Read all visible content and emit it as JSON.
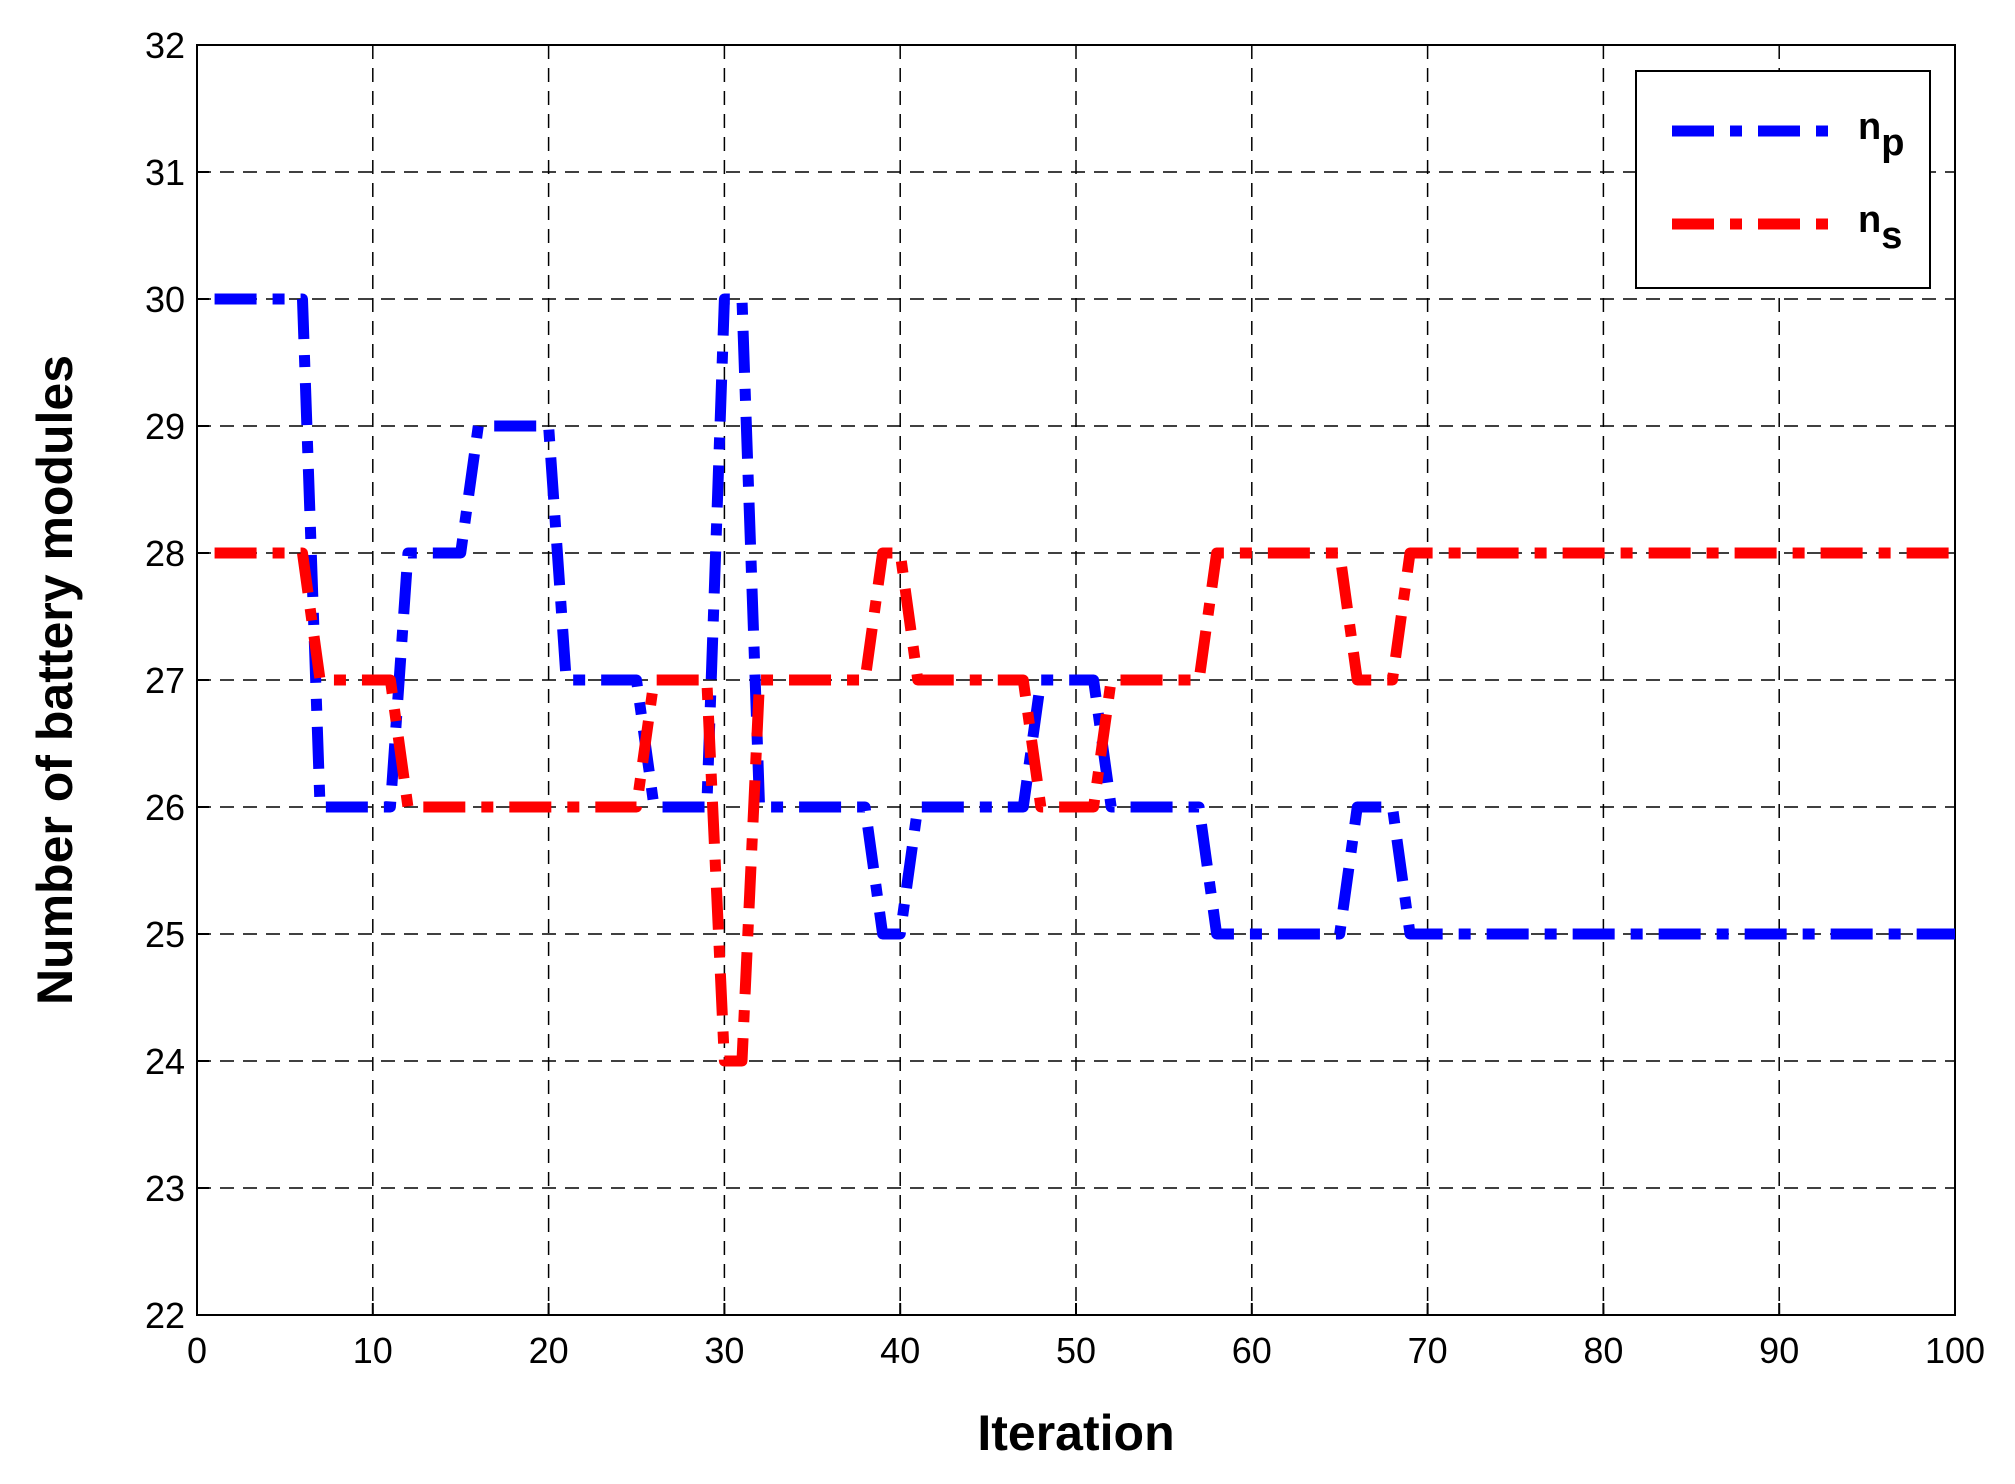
{
  "chart_data": {
    "type": "line",
    "x_label": "Iteration",
    "y_label": "Number of battery modules",
    "x": [
      1,
      2,
      3,
      4,
      5,
      6,
      7,
      8,
      9,
      10,
      11,
      12,
      13,
      14,
      15,
      16,
      17,
      18,
      19,
      20,
      21,
      22,
      23,
      24,
      25,
      26,
      27,
      28,
      29,
      30,
      31,
      32,
      33,
      34,
      35,
      36,
      37,
      38,
      39,
      40,
      41,
      42,
      43,
      44,
      45,
      46,
      47,
      48,
      49,
      50,
      51,
      52,
      53,
      54,
      55,
      56,
      57,
      58,
      59,
      60,
      61,
      62,
      63,
      64,
      65,
      66,
      67,
      68,
      69,
      70,
      71,
      72,
      73,
      74,
      75,
      76,
      77,
      78,
      79,
      80,
      81,
      82,
      83,
      84,
      85,
      86,
      87,
      88,
      89,
      90,
      91,
      92,
      93,
      94,
      95,
      96,
      97,
      98,
      99,
      100
    ],
    "series": [
      {
        "name": "np",
        "color": "#0000ff",
        "values": [
          30,
          30,
          30,
          30,
          30,
          30,
          26,
          26,
          26,
          26,
          26,
          28,
          28,
          28,
          28,
          29,
          29,
          29,
          29,
          29,
          27,
          27,
          27,
          27,
          27,
          26,
          26,
          26,
          26,
          30,
          30,
          26,
          26,
          26,
          26,
          26,
          26,
          26,
          25,
          25,
          26,
          26,
          26,
          26,
          26,
          26,
          26,
          27,
          27,
          27,
          27,
          26,
          26,
          26,
          26,
          26,
          26,
          25,
          25,
          25,
          25,
          25,
          25,
          25,
          25,
          26,
          26,
          26,
          25,
          25,
          25,
          25,
          25,
          25,
          25,
          25,
          25,
          25,
          25,
          25,
          25,
          25,
          25,
          25,
          25,
          25,
          25,
          25,
          25,
          25,
          25,
          25,
          25,
          25,
          25,
          25,
          25,
          25,
          25,
          25
        ]
      },
      {
        "name": "ns",
        "color": "#ff0000",
        "values": [
          28,
          28,
          28,
          28,
          28,
          28,
          27,
          27,
          27,
          27,
          27,
          26,
          26,
          26,
          26,
          26,
          26,
          26,
          26,
          26,
          26,
          26,
          26,
          26,
          26,
          27,
          27,
          27,
          27,
          24,
          24,
          27,
          27,
          27,
          27,
          27,
          27,
          27,
          28,
          28,
          27,
          27,
          27,
          27,
          27,
          27,
          27,
          26,
          26,
          26,
          26,
          27,
          27,
          27,
          27,
          27,
          27,
          28,
          28,
          28,
          28,
          28,
          28,
          28,
          28,
          27,
          27,
          27,
          28,
          28,
          28,
          28,
          28,
          28,
          28,
          28,
          28,
          28,
          28,
          28,
          28,
          28,
          28,
          28,
          28,
          28,
          28,
          28,
          28,
          28,
          28,
          28,
          28,
          28,
          28,
          28,
          28,
          28,
          28,
          28
        ]
      }
    ],
    "xlim": [
      0,
      100
    ],
    "xticks": [
      0,
      10,
      20,
      30,
      40,
      50,
      60,
      70,
      80,
      90,
      100
    ],
    "ylim": [
      22,
      32
    ],
    "yticks": [
      22,
      23,
      24,
      25,
      26,
      27,
      28,
      29,
      30,
      31,
      32
    ],
    "grid": true,
    "legend": "top-right"
  }
}
